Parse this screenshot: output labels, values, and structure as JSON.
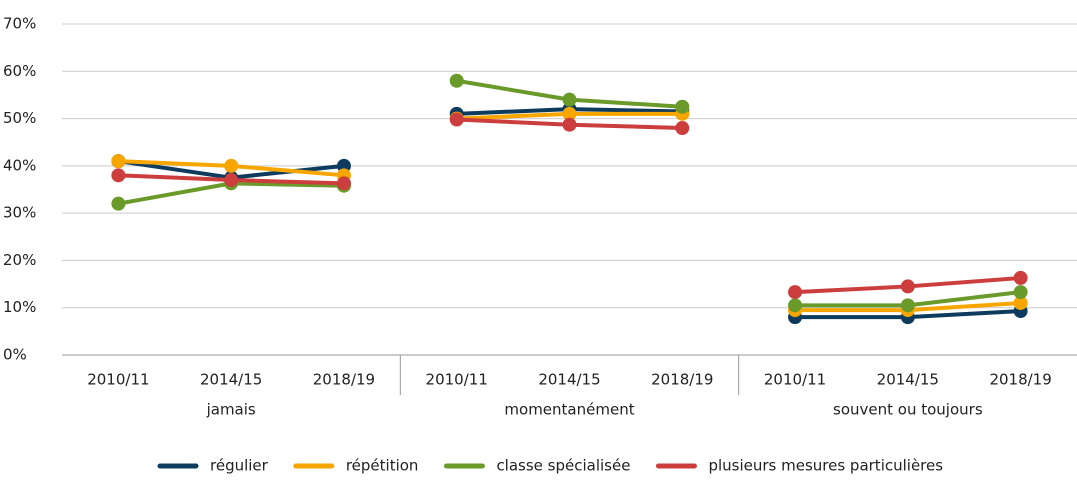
{
  "chart_data": {
    "type": "line",
    "groups": [
      "jamais",
      "momentanément",
      "souvent ou toujours"
    ],
    "categories": [
      "2010/11",
      "2014/15",
      "2018/19"
    ],
    "ylim": [
      0,
      70
    ],
    "yticks": [
      {
        "value": 0,
        "label": "0%"
      },
      {
        "value": 10,
        "label": "10%"
      },
      {
        "value": 20,
        "label": "20%"
      },
      {
        "value": 30,
        "label": "30%"
      },
      {
        "value": 40,
        "label": "40%"
      },
      {
        "value": 50,
        "label": "50%"
      },
      {
        "value": 60,
        "label": "60%"
      },
      {
        "value": 70,
        "label": "70%"
      }
    ],
    "grid": true,
    "legend": "bottom",
    "series": [
      {
        "name": "régulier",
        "color": "#0d3b5e",
        "values": [
          [
            41,
            37.5,
            40
          ],
          [
            51,
            52,
            51.5
          ],
          [
            8,
            8,
            9.3
          ]
        ]
      },
      {
        "name": "répétition",
        "color": "#f7a600",
        "values": [
          [
            41,
            40,
            38
          ],
          [
            50,
            51,
            51
          ],
          [
            9.5,
            9.5,
            11
          ]
        ]
      },
      {
        "name": "classe spécialisée",
        "color": "#6a9a2a",
        "values": [
          [
            32,
            36.3,
            35.8
          ],
          [
            58,
            54,
            52.5
          ],
          [
            10.5,
            10.5,
            13.3
          ]
        ]
      },
      {
        "name": "plusieurs mesures particulières",
        "color": "#cc3d3d",
        "values": [
          [
            38,
            37,
            36.3
          ],
          [
            49.8,
            48.7,
            48
          ],
          [
            13.3,
            14.5,
            16.3
          ]
        ]
      }
    ]
  }
}
